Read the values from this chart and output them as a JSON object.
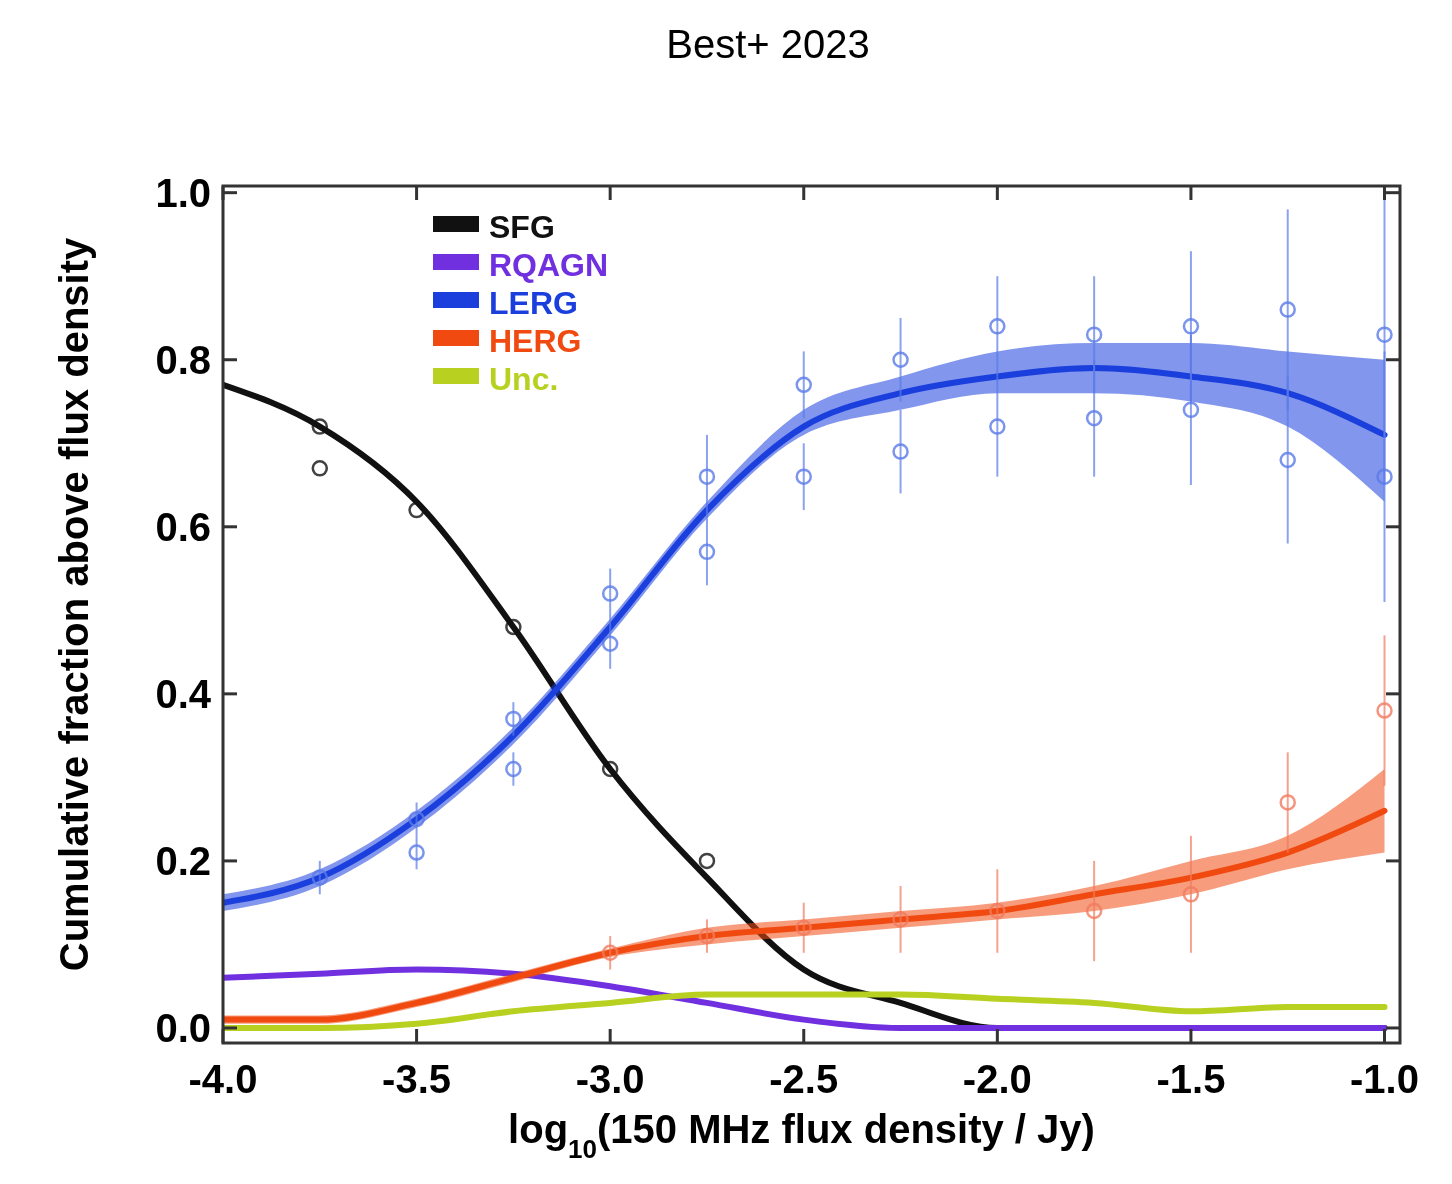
{
  "chart_data": {
    "type": "line",
    "title": "Best+ 2023",
    "xlabel": "log$_{10}$(150 MHz flux density / Jy)",
    "ylabel": "Cumulative fraction above flux density",
    "xlim": [
      -4.0,
      -0.96
    ],
    "ylim": [
      -0.018,
      1.008
    ],
    "xticks": [
      {
        "value": -4,
        "label": "-4.0"
      },
      {
        "value": -3.5,
        "label": "-3.5"
      },
      {
        "value": -3,
        "label": "-3.0"
      },
      {
        "value": -2.5,
        "label": "-2.5"
      },
      {
        "value": -2,
        "label": "-2.0"
      },
      {
        "value": -1.5,
        "label": "-1.5"
      },
      {
        "value": -1,
        "label": "-1.0"
      }
    ],
    "yticks": [
      {
        "value": 0,
        "label": "0.0"
      },
      {
        "value": 0.2,
        "label": "0.2"
      },
      {
        "value": 0.4,
        "label": "0.4"
      },
      {
        "value": 0.6,
        "label": "0.6"
      },
      {
        "value": 0.8,
        "label": "0.8"
      },
      {
        "value": 1,
        "label": "1.0"
      }
    ],
    "x": [
      -4,
      -3.75,
      -3.5,
      -3.25,
      -3,
      -2.75,
      -2.5,
      -2.25,
      -2,
      -1.75,
      -1.5,
      -1.25,
      -1
    ],
    "legend": "top left",
    "grid": false,
    "series": [
      {
        "name": "SFG",
        "color": "#111111",
        "values": [
          0.77,
          0.72,
          0.63,
          0.48,
          0.31,
          0.18,
          0.07,
          0.03,
          0.0,
          0.0,
          0.0,
          0.0,
          0.0
        ]
      },
      {
        "name": "RQAGN",
        "color": "#7030e0",
        "values": [
          0.06,
          0.065,
          0.07,
          0.065,
          0.05,
          0.03,
          0.01,
          0.0,
          0.0,
          0.0,
          0.0,
          0.0,
          0.0
        ]
      },
      {
        "name": "LERG",
        "color": "#1a3fdc",
        "values": [
          0.15,
          0.18,
          0.25,
          0.35,
          0.48,
          0.62,
          0.72,
          0.76,
          0.78,
          0.79,
          0.78,
          0.76,
          0.71
        ],
        "lower": [
          0.14,
          0.17,
          0.24,
          0.34,
          0.47,
          0.61,
          0.71,
          0.74,
          0.76,
          0.76,
          0.75,
          0.72,
          0.63
        ],
        "upper": [
          0.16,
          0.19,
          0.26,
          0.36,
          0.49,
          0.63,
          0.74,
          0.78,
          0.81,
          0.82,
          0.82,
          0.81,
          0.8
        ]
      },
      {
        "name": "HERG",
        "color": "#f04a10",
        "values": [
          0.01,
          0.01,
          0.03,
          0.06,
          0.09,
          0.11,
          0.12,
          0.13,
          0.14,
          0.16,
          0.18,
          0.21,
          0.26
        ],
        "lower": [
          0.005,
          0.005,
          0.025,
          0.055,
          0.085,
          0.1,
          0.11,
          0.12,
          0.13,
          0.14,
          0.16,
          0.19,
          0.21
        ],
        "upper": [
          0.015,
          0.015,
          0.035,
          0.065,
          0.095,
          0.12,
          0.13,
          0.14,
          0.15,
          0.17,
          0.2,
          0.23,
          0.31
        ]
      },
      {
        "name": "Unc.",
        "color": "#b8d020",
        "values": [
          0.0,
          0.0,
          0.005,
          0.02,
          0.03,
          0.04,
          0.04,
          0.04,
          0.035,
          0.03,
          0.02,
          0.025,
          0.025
        ]
      },
      {
        "type": "scatter",
        "marker": "circle",
        "color": "#111111",
        "x": [
          -3.75,
          -3.75,
          -3.5,
          -3.25,
          -3,
          -2.75
        ],
        "values": [
          0.72,
          0.67,
          0.62,
          0.48,
          0.31,
          0.2
        ]
      },
      {
        "type": "scatter",
        "marker": "circle",
        "color": "#5a7ae8",
        "x": [
          -3.75,
          -3.5,
          -3.5,
          -3.25,
          -3.25,
          -3,
          -3,
          -2.75,
          -2.75,
          -2.5,
          -2.5,
          -2.25,
          -2.25,
          -2,
          -2,
          -1.75,
          -1.75,
          -1.5,
          -1.5,
          -1.25,
          -1.25,
          -1,
          -1
        ],
        "values": [
          0.18,
          0.25,
          0.21,
          0.37,
          0.31,
          0.52,
          0.46,
          0.66,
          0.57,
          0.77,
          0.66,
          0.8,
          0.69,
          0.84,
          0.72,
          0.83,
          0.73,
          0.84,
          0.74,
          0.86,
          0.68,
          0.83,
          0.66
        ],
        "errors": [
          0.02,
          0.02,
          0.02,
          0.02,
          0.02,
          0.03,
          0.03,
          0.05,
          0.04,
          0.04,
          0.04,
          0.05,
          0.05,
          0.06,
          0.06,
          0.07,
          0.07,
          0.09,
          0.09,
          0.12,
          0.1,
          0.18,
          0.15
        ]
      },
      {
        "type": "scatter",
        "marker": "circle",
        "color": "#f07a60",
        "x": [
          -3,
          -2.75,
          -2.5,
          -2.25,
          -2,
          -1.75,
          -1.5,
          -1.25,
          -1
        ],
        "values": [
          0.09,
          0.11,
          0.12,
          0.13,
          0.14,
          0.14,
          0.16,
          0.27,
          0.38
        ],
        "errors": [
          0.02,
          0.02,
          0.03,
          0.04,
          0.05,
          0.06,
          0.07,
          0.06,
          0.09
        ]
      }
    ]
  }
}
